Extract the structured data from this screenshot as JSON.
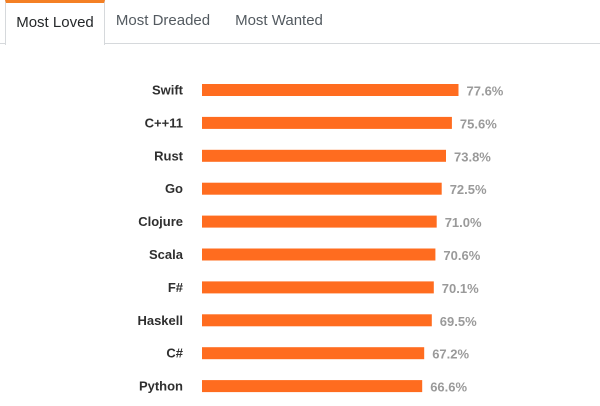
{
  "tabs": [
    {
      "label": "Most Loved",
      "active": true
    },
    {
      "label": "Most Dreaded",
      "active": false
    },
    {
      "label": "Most Wanted",
      "active": false
    }
  ],
  "colors": {
    "bar": "#ff6c1f",
    "active_tab_accent": "#f48024",
    "value_label": "#9a9a9a",
    "category_label": "#2f2f2f"
  },
  "chart_data": {
    "type": "bar",
    "orientation": "horizontal",
    "categories": [
      "Swift",
      "C++11",
      "Rust",
      "Go",
      "Clojure",
      "Scala",
      "F#",
      "Haskell",
      "C#",
      "Python"
    ],
    "values": [
      77.6,
      75.6,
      73.8,
      72.5,
      71.0,
      70.6,
      70.1,
      69.5,
      67.2,
      66.6
    ],
    "value_labels": [
      "77.6%",
      "75.6%",
      "73.8%",
      "72.5%",
      "71.0%",
      "70.6%",
      "70.1%",
      "69.5%",
      "67.2%",
      "66.6%"
    ],
    "unit": "%",
    "xlim": [
      0,
      100
    ],
    "grid": false,
    "title": "",
    "xlabel": "",
    "ylabel": ""
  }
}
